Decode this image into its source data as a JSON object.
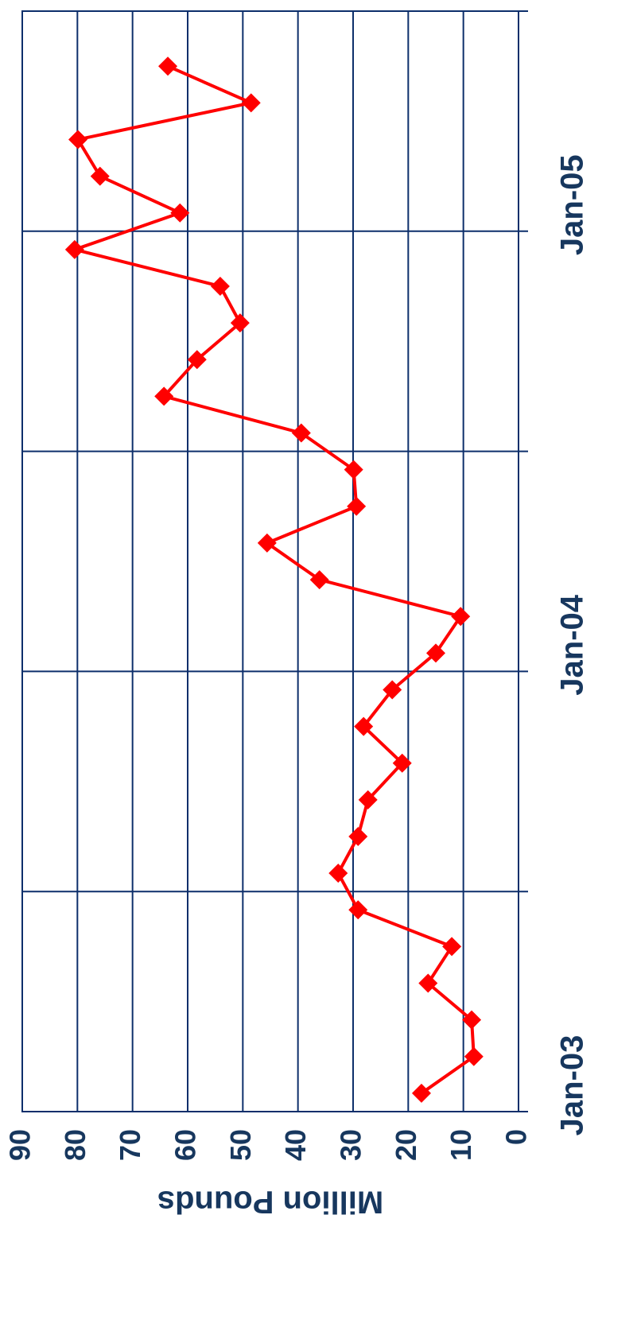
{
  "chart_data": {
    "type": "line",
    "y_label": "Million Pounds",
    "categories": [
      "Jan-03",
      null,
      null,
      null,
      null,
      null,
      null,
      null,
      null,
      null,
      null,
      null,
      "Jan-04",
      null,
      null,
      null,
      null,
      null,
      null,
      null,
      null,
      null,
      null,
      null,
      "Jan-05",
      null,
      null,
      null,
      null,
      null
    ],
    "series": [
      {
        "name": "Million Pounds",
        "color": "#ff0000",
        "values": [
          17.6,
          8.1,
          8.5,
          16.4,
          12.1,
          29.1,
          32.7,
          29.1,
          27.3,
          21.1,
          28.1,
          22.9,
          15.0,
          10.5,
          36.1,
          45.6,
          29.4,
          29.9,
          39.4,
          64.3,
          58.3,
          50.5,
          54.1,
          80.5,
          61.4,
          75.9,
          79.9,
          48.5,
          63.6,
          null
        ]
      }
    ],
    "ylim": [
      0,
      90
    ],
    "yticks": [
      0,
      10,
      20,
      30,
      40,
      50,
      60,
      70,
      80,
      90
    ],
    "grid": true,
    "rotated": true
  }
}
